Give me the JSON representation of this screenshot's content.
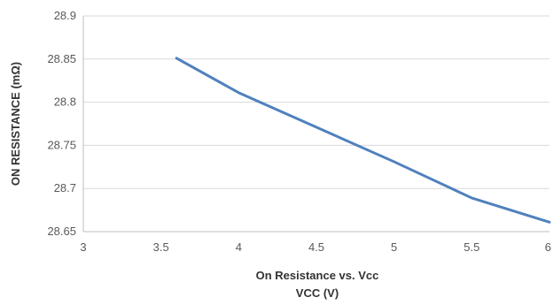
{
  "chart_data": {
    "type": "line",
    "caption": "On Resistance vs. Vcc",
    "xlabel": "VCC (V)",
    "ylabel": "ON RESISTANCE (mΩ)",
    "xlim": [
      3,
      6
    ],
    "ylim": [
      28.65,
      28.9
    ],
    "x_ticks": [
      "3",
      "3.5",
      "4",
      "4.5",
      "5",
      "5.5",
      "6"
    ],
    "y_ticks": [
      "28.65",
      "28.7",
      "28.75",
      "28.8",
      "28.85",
      "28.9"
    ],
    "grid": "horizontal",
    "series": [
      {
        "color": "#4f81bd",
        "x": [
          3.6,
          4.0,
          4.5,
          5.0,
          5.5,
          6.0
        ],
        "y": [
          28.851,
          28.811,
          28.771,
          28.731,
          28.689,
          28.661
        ]
      }
    ]
  }
}
